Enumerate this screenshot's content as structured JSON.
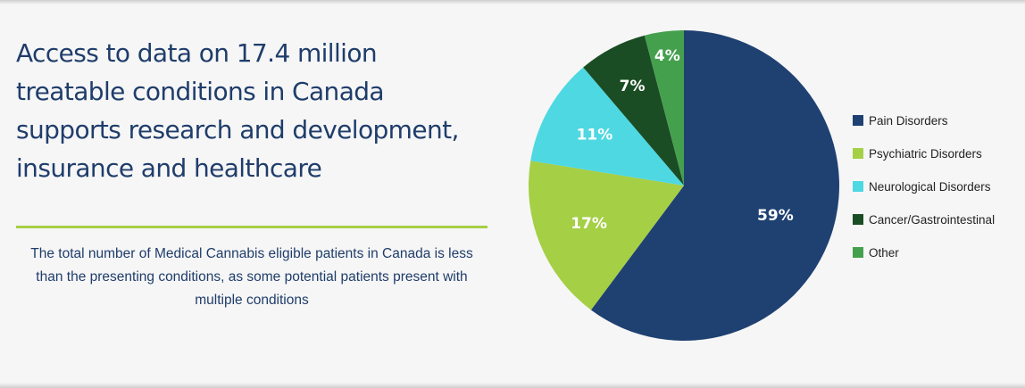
{
  "headline": "Access to data on 17.4 million treatable conditions in Canada supports research and development, insurance and healthcare",
  "description": "The total number of Medical Cannabis eligible patients in Canada is less than the presenting conditions, as some potential patients present with multiple conditions",
  "colors": {
    "accent_line": "#a8cf45",
    "text": "#1f3d6b"
  },
  "chart_data": {
    "type": "pie",
    "categories": [
      "Pain Disorders",
      "Psychiatric Disorders",
      "Neurological Disorders",
      "Cancer/Gastrointestinal",
      "Other"
    ],
    "values": [
      59,
      17,
      11,
      7,
      4
    ],
    "labels": [
      "59%",
      "17%",
      "11%",
      "7%",
      "4%"
    ],
    "colors": [
      "#1f4172",
      "#a5cf45",
      "#4ed8e2",
      "#1b4d24",
      "#45a04e"
    ],
    "start": "top",
    "direction": "clockwise",
    "legend_position": "right"
  }
}
